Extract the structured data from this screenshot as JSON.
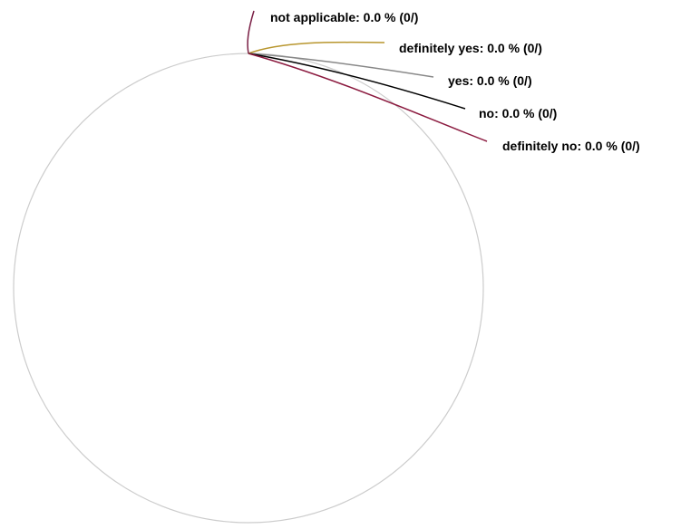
{
  "chart_data": {
    "type": "pie",
    "title": "",
    "legend": "none",
    "circle_color": "#cccccc",
    "slices": [
      {
        "name": "not applicable",
        "percent": "0.0 %",
        "count": "(0/)",
        "value": 0,
        "color": "#7a1f45"
      },
      {
        "name": "definitely yes",
        "percent": "0.0 %",
        "count": "(0/)",
        "value": 0,
        "color": "#b8962e"
      },
      {
        "name": "yes",
        "percent": "0.0 %",
        "count": "(0/)",
        "value": 0,
        "color": "#888888"
      },
      {
        "name": "no",
        "percent": "0.0 %",
        "count": "(0/)",
        "value": 0,
        "color": "#000000"
      },
      {
        "name": "definitely no",
        "percent": "0.0 %",
        "count": "(0/)",
        "value": 0,
        "color": "#8b1a3f"
      }
    ]
  }
}
